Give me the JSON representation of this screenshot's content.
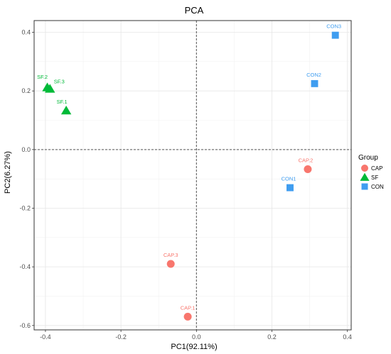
{
  "chart_data": {
    "type": "scatter",
    "title": "PCA",
    "xlabel": "PC1(92.11%)",
    "ylabel": "PC2(6.27%)",
    "xlim": [
      -0.43,
      0.41
    ],
    "ylim": [
      -0.615,
      0.44
    ],
    "x_ticks": [
      -0.4,
      -0.2,
      0.0,
      0.2,
      0.4
    ],
    "x_tick_labels": [
      "-0.4",
      "-0.2",
      "0.0",
      "0.2",
      "0.4"
    ],
    "y_ticks": [
      -0.6,
      -0.4,
      -0.2,
      0.0,
      0.2,
      0.4
    ],
    "y_tick_labels": [
      "-0.6",
      "-0.4",
      "-0.2",
      "0.0",
      "0.2",
      "0.4"
    ],
    "grid": true,
    "reference_lines": {
      "x": 0,
      "y": 0,
      "style": "dashed"
    },
    "legend": {
      "title": "Group",
      "position": "right",
      "entries": [
        {
          "label": "CAP",
          "color": "#F8766D",
          "shape": "circle"
        },
        {
          "label": "SF",
          "color": "#00BA38",
          "shape": "triangle"
        },
        {
          "label": "CON",
          "color": "#3F9DF0",
          "shape": "square"
        }
      ]
    },
    "series": [
      {
        "name": "CAP",
        "color": "#F8766D",
        "shape": "circle",
        "points": [
          {
            "label": "CAP.1",
            "x": -0.023,
            "y": -0.57
          },
          {
            "label": "CAP.2",
            "x": 0.295,
            "y": -0.067
          },
          {
            "label": "CAP.3",
            "x": -0.068,
            "y": -0.39
          }
        ]
      },
      {
        "name": "SF",
        "color": "#00BA38",
        "shape": "triangle",
        "points": [
          {
            "label": "SF.1",
            "x": -0.345,
            "y": 0.133
          },
          {
            "label": "SF.2",
            "x": -0.395,
            "y": 0.212
          },
          {
            "label": "SF.3",
            "x": -0.388,
            "y": 0.207
          }
        ]
      },
      {
        "name": "CON",
        "color": "#3F9DF0",
        "shape": "square",
        "points": [
          {
            "label": "CON1",
            "x": 0.248,
            "y": -0.13
          },
          {
            "label": "CON2",
            "x": 0.313,
            "y": 0.225
          },
          {
            "label": "CON3",
            "x": 0.368,
            "y": 0.39
          }
        ]
      }
    ]
  }
}
